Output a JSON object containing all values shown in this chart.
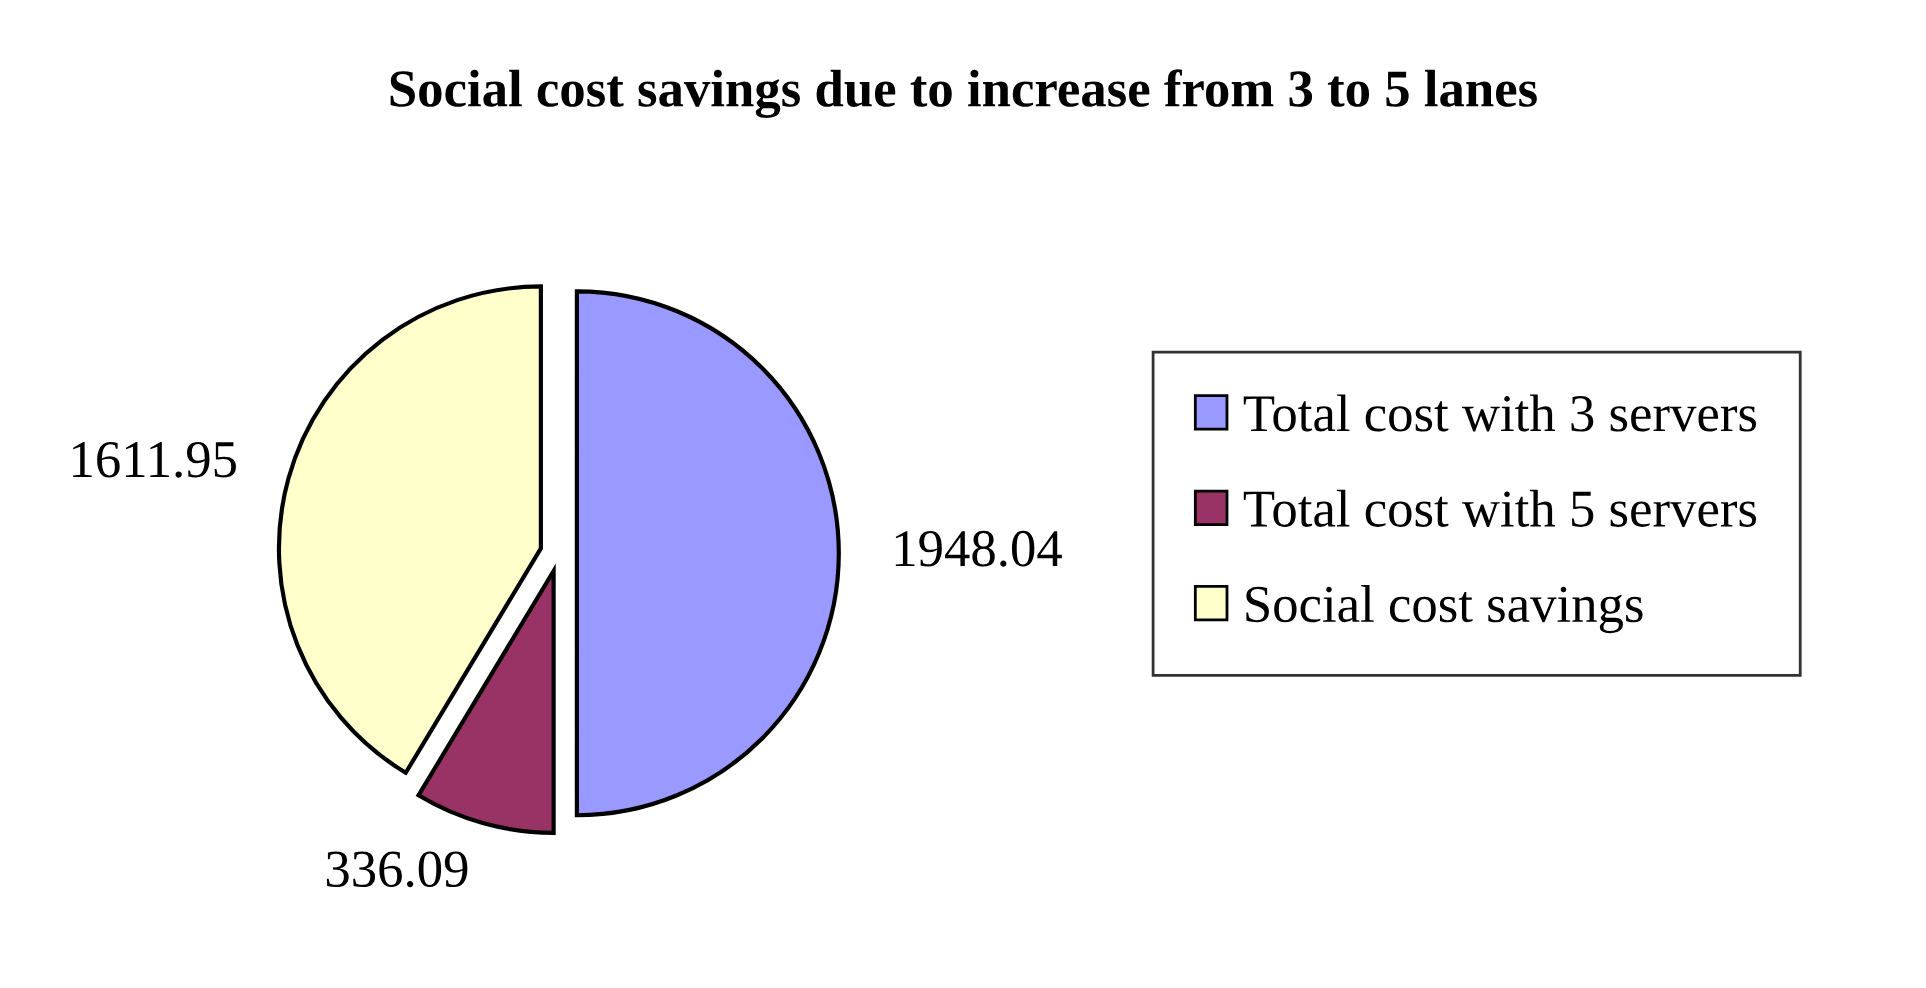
{
  "chart_data": {
    "type": "pie",
    "title": "Social cost savings due to increase from 3 to 5 lanes",
    "categories": [
      "Total cost with 3 servers",
      "Total cost with 5 servers",
      "Social cost savings"
    ],
    "values": [
      1948.04,
      336.09,
      1611.95
    ],
    "colors": [
      "#9999ff",
      "#993366",
      "#ffffcc"
    ],
    "data_labels": true,
    "legend": "right"
  }
}
